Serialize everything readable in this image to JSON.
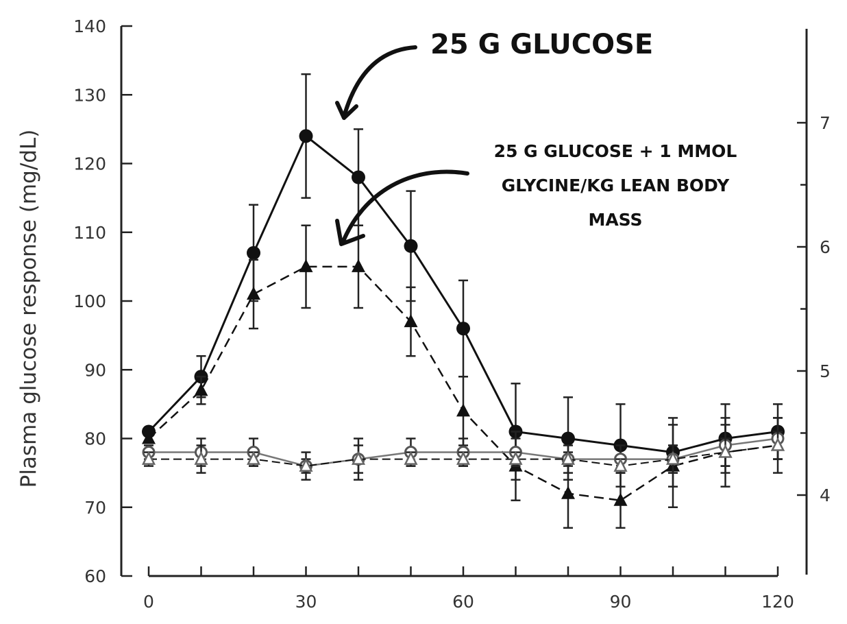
{
  "chart_data": {
    "type": "line",
    "title": "",
    "xlabel": "",
    "ylabel": "Plasma glucose response (mg/dL)",
    "xlim": [
      0,
      120
    ],
    "ylim": [
      60,
      140
    ],
    "x_ticks": [
      0,
      30,
      60,
      90,
      120
    ],
    "y_ticks": [
      60,
      70,
      80,
      90,
      100,
      110,
      120,
      130,
      140
    ],
    "x_tick_labels": [
      "0",
      "30",
      "60",
      "90",
      "120"
    ],
    "y_tick_labels": [
      "60",
      "70",
      "80",
      "90",
      "100",
      "110",
      "120",
      "130",
      "140"
    ],
    "y2_ticks": [
      4,
      5,
      6,
      7
    ],
    "y2_tick_labels": [
      "4",
      "5",
      "6",
      "7"
    ],
    "grid": false,
    "x": [
      0,
      10,
      20,
      30,
      40,
      50,
      60,
      70,
      80,
      90,
      100,
      110,
      120
    ],
    "series": [
      {
        "marker": "filled-circle",
        "line": "solid",
        "values": [
          81,
          89,
          107,
          124,
          118,
          108,
          96,
          81,
          80,
          79,
          78,
          80,
          81
        ],
        "err": [
          0,
          3,
          7,
          9,
          7,
          8,
          7,
          7,
          6,
          6,
          5,
          5,
          4
        ]
      },
      {
        "marker": "filled-triangle",
        "line": "dashed",
        "values": [
          80,
          87,
          101,
          105,
          105,
          97,
          84,
          76,
          72,
          71,
          76,
          78,
          79
        ],
        "err": [
          0,
          2,
          5,
          6,
          6,
          5,
          5,
          5,
          5,
          4,
          6,
          5,
          4
        ]
      },
      {
        "marker": "open-circle",
        "line": "solid-gray",
        "values": [
          78,
          78,
          78,
          76,
          77,
          78,
          78,
          78,
          77,
          77,
          77,
          79,
          80
        ],
        "err": [
          1,
          2,
          2,
          2,
          3,
          2,
          2,
          2,
          2,
          2,
          2,
          3,
          3
        ]
      },
      {
        "marker": "open-triangle",
        "line": "dashed-gray",
        "values": [
          77,
          77,
          77,
          76,
          77,
          77,
          77,
          77,
          77,
          76,
          77,
          78,
          79
        ],
        "err": [
          1,
          2,
          1,
          1,
          2,
          1,
          1,
          1,
          1,
          1,
          2,
          2,
          2
        ]
      }
    ],
    "annotations": [
      {
        "text": "25 G GLUCOSE"
      },
      {
        "lines": [
          "25 G GLUCOSE + 1 MMOL",
          "GLYCINE/KG LEAN BODY",
          "MASS"
        ]
      }
    ]
  },
  "colors": {
    "axis": "#222222",
    "series_dark": "#111111",
    "series_gray": "#777777"
  }
}
